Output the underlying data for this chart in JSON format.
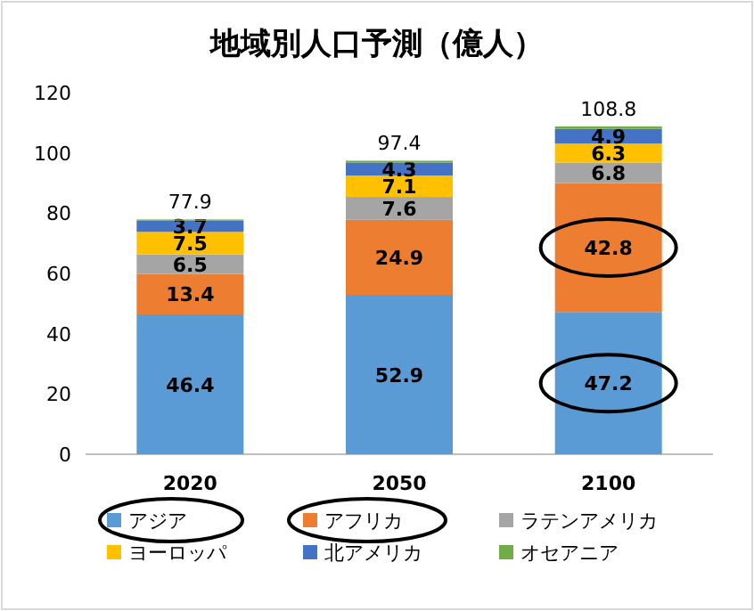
{
  "chart_data": {
    "type": "bar",
    "title": "地域別人口予測（億人）",
    "stacked": true,
    "categories": [
      "2020",
      "2050",
      "2100"
    ],
    "series": [
      {
        "name": "アジア",
        "color": "#5b9bd5",
        "values": [
          46.4,
          52.9,
          47.2
        ],
        "value_labels": [
          "46.4",
          "52.9",
          "47.2"
        ]
      },
      {
        "name": "アフリカ",
        "color": "#ed7d31",
        "values": [
          13.4,
          24.9,
          42.8
        ],
        "value_labels": [
          "13.4",
          "24.9",
          "42.8"
        ]
      },
      {
        "name": "ラテンアメリカ",
        "color": "#a5a5a5",
        "values": [
          6.5,
          7.6,
          6.8
        ],
        "value_labels": [
          "6.5",
          "7.6",
          "6.8"
        ]
      },
      {
        "name": "ヨーロッパ",
        "color": "#ffc000",
        "values": [
          7.5,
          7.1,
          6.3
        ],
        "value_labels": [
          "7.5",
          "7.1",
          "6.3"
        ]
      },
      {
        "name": "北アメリカ",
        "color": "#4472c4",
        "values": [
          3.7,
          4.3,
          4.9
        ],
        "value_labels": [
          "3.7",
          "4.3",
          "4.9"
        ]
      },
      {
        "name": "オセアニア",
        "color": "#70ad47",
        "values": [
          0.4,
          0.6,
          0.8
        ],
        "value_labels": [
          null,
          null,
          null
        ]
      }
    ],
    "totals": [
      "77.9",
      "97.4",
      "108.8"
    ],
    "ylim": [
      0,
      120
    ],
    "yticks": [
      0,
      20,
      40,
      60,
      80,
      100,
      120
    ],
    "grid": false,
    "legend": "bottom"
  }
}
